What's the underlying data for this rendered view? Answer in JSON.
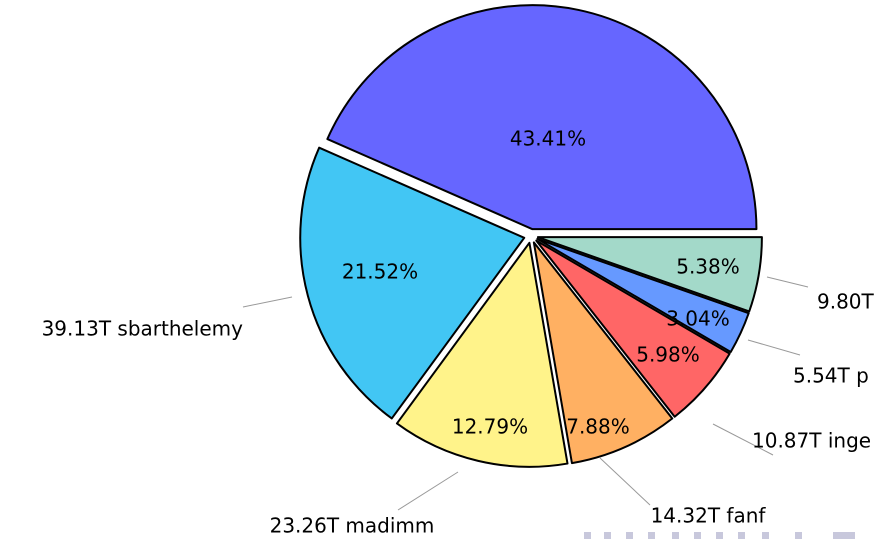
{
  "chart_data": {
    "type": "pie",
    "values": [
      43.41,
      21.52,
      12.79,
      7.88,
      5.98,
      3.04,
      5.38
    ],
    "value_labels": [
      "43.41%",
      "21.52%",
      "12.79%",
      "7.88%",
      "5.98%",
      "3.04%",
      "5.38%"
    ],
    "labels": [
      null,
      "39.13T sbarthelemy",
      "23.26T madimm",
      "14.32T fanf",
      "10.87T inge",
      "5.54T p",
      "9.80T"
    ],
    "colors": [
      "#6666ff",
      "#42c6f4",
      "#fff38a",
      "#ffb062",
      "#ff6666",
      "#6699ff",
      "#a3d9c9"
    ]
  }
}
